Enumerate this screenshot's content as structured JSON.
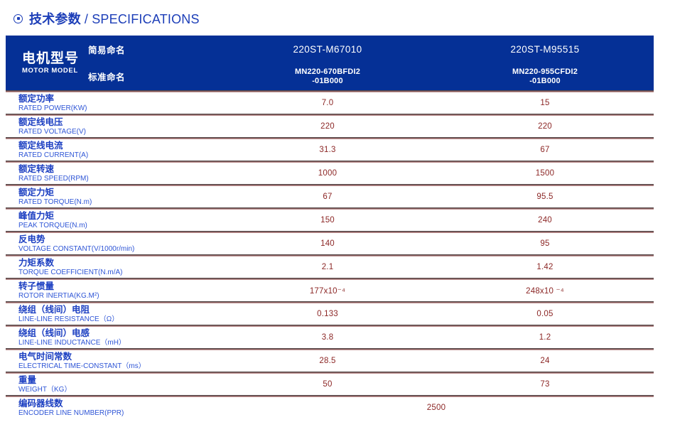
{
  "page_title": {
    "icon": "circled-dot-icon",
    "zh": "技术参数",
    "en": "/ SPECIFICATIONS"
  },
  "table": {
    "header": {
      "motor_model_zh": "电机型号",
      "motor_model_en": "MOTOR MODEL",
      "simple_name_label": "简易命名",
      "standard_name_label": "标准命名",
      "columns": [
        {
          "simple_name": "220ST-M67010",
          "standard_name_line1": "MN220-670BFDI2",
          "standard_name_line2": "-01B000"
        },
        {
          "simple_name": "220ST-M95515",
          "standard_name_line1": "MN220-955CFDI2",
          "standard_name_line2": "-01B000"
        }
      ]
    },
    "rows": [
      {
        "zh": "额定功率",
        "en": "RATED POWER(KW)",
        "values": [
          "7.0",
          "15"
        ]
      },
      {
        "zh": "额定线电压",
        "en": "RATED VOLTAGE(V)",
        "values": [
          "220",
          "220"
        ]
      },
      {
        "zh": "额定线电流",
        "en": "RATED CURRENT(A)",
        "values": [
          "31.3",
          "67"
        ]
      },
      {
        "zh": "额定转速",
        "en": "RATED SPEED(RPM)",
        "values": [
          "1000",
          "1500"
        ]
      },
      {
        "zh": "额定力矩",
        "en": "RATED TORQUE(N.m)",
        "values": [
          "67",
          "95.5"
        ]
      },
      {
        "zh": "峰值力矩",
        "en": "PEAK TORQUE(N.m)",
        "values": [
          "150",
          "240"
        ]
      },
      {
        "zh": "反电势",
        "en": "VOLTAGE CONSTANT(V/1000r/min)",
        "values": [
          "140",
          "95"
        ]
      },
      {
        "zh": "力矩系数",
        "en": "TORQUE COEFFICIENT(N.m/A)",
        "values": [
          "2.1",
          "1.42"
        ]
      },
      {
        "zh": "转子惯量",
        "en": "ROTOR INERTIA(KG.M²)",
        "values": [
          "177x10⁻⁴",
          "248x10 ⁻⁴"
        ]
      },
      {
        "zh": "绕组（线间）电阻",
        "en": "LINE-LINE RESISTANCE（Ω）",
        "values": [
          "0.133",
          "0.05"
        ]
      },
      {
        "zh": "绕组（线间）电感",
        "en": "LINE-LINE INDUCTANCE（mH）",
        "values": [
          "3.8",
          "1.2"
        ]
      },
      {
        "zh": "电气时间常数",
        "en": "ELECTRICAL TIME-CONSTANT（ms）",
        "values": [
          "28.5",
          "24"
        ]
      },
      {
        "zh": "重量",
        "en": "WEIGHT（KG）",
        "values": [
          "50",
          "73"
        ]
      },
      {
        "zh": "编码器线数",
        "en": "ENCODER LINE NUMBER(PPR)",
        "values": [
          "2500"
        ]
      }
    ]
  },
  "colors": {
    "title": "#1c3eb8",
    "header_bg": "#053096",
    "header_text": "#ffffff",
    "label_zh": "#1d40c2",
    "label_en": "#2e55d6",
    "value": "#8c2726",
    "sep_top": "#3f3f41",
    "sep_bottom": "#d9abab"
  }
}
